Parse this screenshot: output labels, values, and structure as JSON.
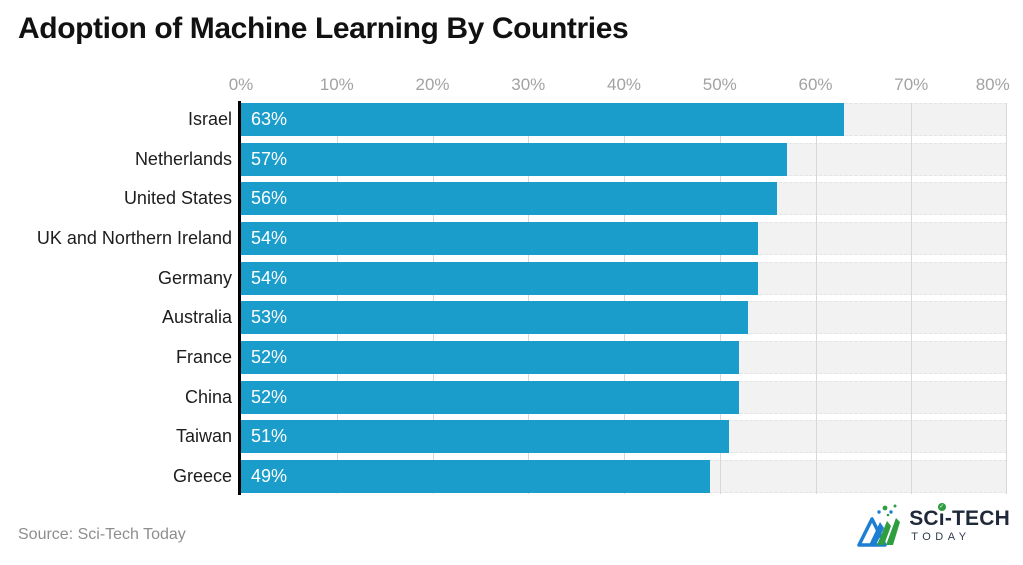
{
  "chart_data": {
    "type": "bar",
    "orientation": "horizontal",
    "title": "Adoption of Machine Learning By Countries",
    "categories": [
      "Israel",
      "Netherlands",
      "United States",
      "UK and Northern Ireland",
      "Germany",
      "Australia",
      "France",
      "China",
      "Taiwan",
      "Greece"
    ],
    "values": [
      63,
      57,
      56,
      54,
      54,
      53,
      52,
      52,
      51,
      49
    ],
    "value_labels": [
      "63%",
      "57%",
      "56%",
      "54%",
      "54%",
      "53%",
      "52%",
      "52%",
      "51%",
      "49%"
    ],
    "xlabel": "",
    "ylabel": "",
    "xlim": [
      0,
      80
    ],
    "x_tick_labels": [
      "0%",
      "10%",
      "20%",
      "30%",
      "40%",
      "50%",
      "60%",
      "70%",
      "80%"
    ],
    "grid": true,
    "legend": false,
    "bar_color": "#1b9dcb",
    "track_color": "#f2f2f2",
    "gridline_color": "#d8d8d8",
    "axis_line_color": "#000000",
    "tick_label_color": "#a2a2a2",
    "category_label_color": "#1d1d1d",
    "value_label_color": "#ffffff"
  },
  "footer": {
    "source": "Source: Sci-Tech Today",
    "logo": {
      "name_prefix": "SC",
      "name_i": "ı",
      "name_suffix": "-TECH",
      "tagline": "TODAY",
      "blue": "#1e7fd2",
      "green": "#2e9e41"
    }
  }
}
